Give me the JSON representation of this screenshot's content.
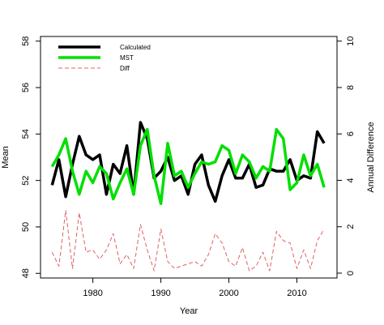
{
  "chart_data": {
    "type": "line",
    "xlabel": "Year",
    "ylabel": "Mean",
    "y2label": "Annual Difference",
    "xlim": [
      1972.3,
      2015.9
    ],
    "ylim": [
      47.8,
      58.2
    ],
    "y2lim": [
      -0.21,
      10.2
    ],
    "x_ticks": [
      1980,
      1990,
      2000,
      2010
    ],
    "y_ticks": [
      48,
      50,
      52,
      54,
      56,
      58
    ],
    "y2_ticks": [
      0,
      2,
      4,
      6,
      8,
      10
    ],
    "grid": false,
    "legend_position": "top-left",
    "x": [
      1974,
      1975,
      1976,
      1977,
      1978,
      1979,
      1980,
      1981,
      1982,
      1983,
      1984,
      1985,
      1986,
      1987,
      1988,
      1989,
      1990,
      1991,
      1992,
      1993,
      1994,
      1995,
      1996,
      1997,
      1998,
      1999,
      2000,
      2001,
      2002,
      2003,
      2004,
      2005,
      2006,
      2007,
      2008,
      2009,
      2010,
      2011,
      2012,
      2013,
      2014
    ],
    "series": [
      {
        "name": "Calculated",
        "axis": "left",
        "color": "#000000",
        "dash": "solid",
        "values": [
          51.8,
          52.9,
          51.3,
          52.7,
          53.9,
          53.1,
          52.9,
          53.1,
          51.4,
          52.7,
          52.3,
          53.5,
          51.4,
          54.5,
          53.8,
          52.1,
          52.4,
          53.0,
          52.0,
          52.2,
          51.4,
          52.7,
          53.1,
          51.8,
          51.1,
          52.2,
          52.9,
          52.1,
          52.1,
          52.7,
          51.7,
          51.8,
          52.5,
          52.4,
          52.4,
          52.9,
          52.0,
          52.2,
          52.1,
          54.1,
          53.6
        ]
      },
      {
        "name": "MST",
        "axis": "left",
        "color": "#00e000",
        "dash": "solid",
        "values": [
          52.6,
          53.1,
          53.8,
          52.4,
          51.4,
          52.4,
          51.9,
          52.6,
          52.3,
          51.2,
          51.9,
          52.5,
          51.4,
          53.5,
          54.2,
          52.2,
          51.0,
          53.6,
          52.2,
          52.4,
          51.7,
          52.3,
          52.8,
          52.7,
          52.8,
          53.5,
          53.3,
          52.3,
          53.1,
          52.8,
          52.1,
          52.6,
          52.4,
          54.2,
          53.8,
          51.6,
          51.9,
          53.1,
          52.2,
          52.7,
          51.7
        ]
      },
      {
        "name": "Diff",
        "axis": "right",
        "color": "#e06060",
        "dash": "dashed",
        "values": [
          0.9,
          0.3,
          2.7,
          0.2,
          2.6,
          0.9,
          1.0,
          0.6,
          1.0,
          1.7,
          0.4,
          0.8,
          0.2,
          2.1,
          1.0,
          0.1,
          1.9,
          0.5,
          0.2,
          0.3,
          0.4,
          0.5,
          0.3,
          0.8,
          1.7,
          1.3,
          0.5,
          0.3,
          1.1,
          0.1,
          0.3,
          0.9,
          0.1,
          1.8,
          1.4,
          1.3,
          0.2,
          1.0,
          0.2,
          1.4,
          1.9
        ]
      }
    ]
  }
}
